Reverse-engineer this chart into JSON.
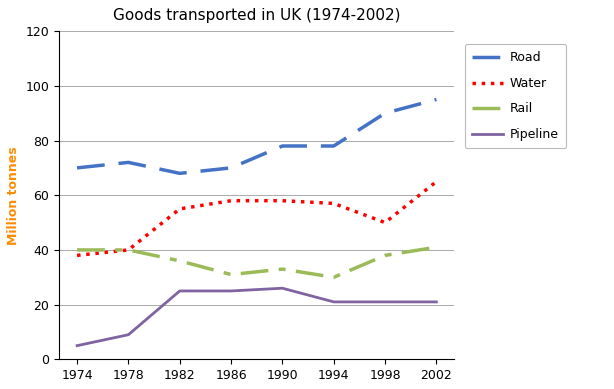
{
  "title": "Goods transported in UK (1974-2002)",
  "ylabel": "Million tonnes",
  "years": [
    1974,
    1978,
    1982,
    1986,
    1990,
    1994,
    1998,
    2002
  ],
  "road": [
    70,
    72,
    68,
    70,
    78,
    78,
    90,
    95
  ],
  "water": [
    38,
    40,
    55,
    58,
    58,
    57,
    50,
    65
  ],
  "rail": [
    40,
    40,
    36,
    31,
    33,
    30,
    38,
    41
  ],
  "pipeline": [
    5,
    9,
    25,
    25,
    26,
    21,
    21,
    21
  ],
  "road_color": "#4472C4",
  "water_color": "#FF0000",
  "rail_color": "#9BBB59",
  "pipeline_color": "#8064A2",
  "ylim": [
    0,
    120
  ],
  "yticks": [
    0,
    20,
    40,
    60,
    80,
    100,
    120
  ],
  "title_fontsize": 11,
  "axis_label_fontsize": 9,
  "legend_labels": [
    "Road",
    "Water",
    "Rail",
    "Pipeline"
  ],
  "ylabel_color": "#FF8C00",
  "background_color": "#FFFFFF"
}
